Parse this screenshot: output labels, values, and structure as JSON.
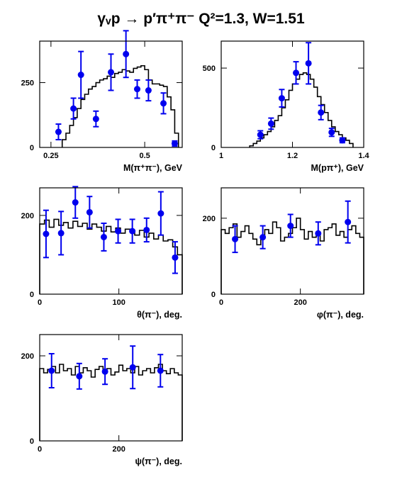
{
  "title": "γᵥp → p′π⁺π⁻   Q²=1.3, W=1.51",
  "colors": {
    "data_points": "#0000ee",
    "histogram": "#000000",
    "frame": "#000000"
  },
  "chart_data": [
    {
      "type": "histogram+scatter",
      "xlabel": "M(π⁺π⁻), GeV",
      "xlim": [
        0.22,
        0.6
      ],
      "ylim": [
        0,
        410
      ],
      "xticks": [
        0.25,
        0.5
      ],
      "xtick_labels": [
        "0.25",
        "0.5"
      ],
      "yticks": [
        0,
        250
      ],
      "ytick_labels": [
        "0",
        "250"
      ],
      "histogram": {
        "edges": [
          0.28,
          0.29,
          0.3,
          0.31,
          0.32,
          0.33,
          0.34,
          0.35,
          0.36,
          0.37,
          0.38,
          0.39,
          0.4,
          0.41,
          0.42,
          0.43,
          0.44,
          0.45,
          0.46,
          0.47,
          0.48,
          0.49,
          0.5,
          0.51,
          0.52,
          0.53,
          0.54,
          0.55,
          0.56,
          0.57,
          0.58,
          0.59
        ],
        "values": [
          30,
          55,
          85,
          115,
          150,
          185,
          205,
          225,
          235,
          250,
          260,
          265,
          275,
          270,
          285,
          290,
          300,
          295,
          290,
          305,
          310,
          315,
          300,
          260,
          245,
          245,
          240,
          235,
          195,
          145,
          55
        ]
      },
      "points": {
        "x": [
          0.27,
          0.31,
          0.33,
          0.37,
          0.41,
          0.45,
          0.48,
          0.51,
          0.55,
          0.58
        ],
        "y": [
          60,
          150,
          280,
          110,
          290,
          360,
          225,
          220,
          170,
          15
        ],
        "err": [
          30,
          40,
          90,
          30,
          70,
          90,
          35,
          40,
          40,
          10
        ]
      }
    },
    {
      "type": "histogram+scatter",
      "xlabel": "M(pπ⁺), GeV",
      "xlim": [
        1.0,
        1.4
      ],
      "ylim": [
        0,
        670
      ],
      "xticks": [
        1.0,
        1.2,
        1.4
      ],
      "xtick_labels": [
        "1",
        "1.2",
        "1.4"
      ],
      "yticks": [
        0,
        500
      ],
      "ytick_labels": [
        "0",
        "500"
      ],
      "histogram": {
        "edges": [
          1.08,
          1.09,
          1.1,
          1.11,
          1.12,
          1.13,
          1.14,
          1.15,
          1.16,
          1.17,
          1.18,
          1.19,
          1.2,
          1.21,
          1.22,
          1.23,
          1.24,
          1.25,
          1.26,
          1.27,
          1.28,
          1.29,
          1.3,
          1.31,
          1.32,
          1.33,
          1.34,
          1.35,
          1.36,
          1.37
        ],
        "values": [
          10,
          25,
          40,
          60,
          80,
          100,
          130,
          170,
          200,
          250,
          300,
          360,
          400,
          430,
          460,
          470,
          460,
          430,
          380,
          320,
          270,
          220,
          170,
          130,
          100,
          80,
          60,
          45,
          25
        ]
      },
      "points": {
        "x": [
          1.11,
          1.14,
          1.17,
          1.21,
          1.245,
          1.28,
          1.31,
          1.34
        ],
        "y": [
          80,
          150,
          310,
          470,
          530,
          220,
          95,
          45
        ],
        "err": [
          25,
          35,
          55,
          70,
          130,
          45,
          25,
          15
        ]
      }
    },
    {
      "type": "histogram+scatter",
      "xlabel": "θ(π⁻), deg.",
      "xlim": [
        0,
        180
      ],
      "ylim": [
        0,
        270
      ],
      "xticks": [
        0,
        100
      ],
      "xtick_labels": [
        "0",
        "100"
      ],
      "yticks": [
        0,
        200
      ],
      "ytick_labels": [
        "0",
        "200"
      ],
      "histogram": {
        "edges": [
          0,
          6,
          12,
          18,
          24,
          30,
          36,
          42,
          48,
          54,
          60,
          66,
          72,
          78,
          84,
          90,
          96,
          102,
          108,
          114,
          120,
          126,
          132,
          138,
          144,
          150,
          156,
          162,
          168,
          174,
          180
        ],
        "values": [
          178,
          188,
          170,
          190,
          175,
          182,
          168,
          185,
          172,
          180,
          165,
          178,
          170,
          160,
          172,
          158,
          168,
          155,
          165,
          160,
          150,
          162,
          145,
          155,
          140,
          150,
          135,
          138,
          120,
          100
        ]
      },
      "points": {
        "x": [
          8,
          27,
          45,
          63,
          81,
          99,
          117,
          135,
          153,
          171
        ],
        "y": [
          153,
          155,
          233,
          208,
          145,
          160,
          160,
          163,
          205,
          93
        ],
        "err": [
          60,
          55,
          40,
          40,
          35,
          30,
          30,
          30,
          55,
          40
        ]
      }
    },
    {
      "type": "histogram+scatter",
      "xlabel": "φ(π⁻), deg.",
      "xlim": [
        0,
        360
      ],
      "ylim": [
        0,
        280
      ],
      "xticks": [
        0,
        200
      ],
      "xtick_labels": [
        "0",
        "200"
      ],
      "yticks": [
        0,
        200
      ],
      "ytick_labels": [
        "0",
        "200"
      ],
      "histogram": {
        "edges": [
          0,
          10,
          20,
          30,
          40,
          50,
          60,
          70,
          80,
          90,
          100,
          110,
          120,
          130,
          140,
          150,
          160,
          170,
          180,
          190,
          200,
          210,
          220,
          230,
          240,
          250,
          260,
          270,
          280,
          290,
          300,
          310,
          320,
          330,
          340,
          350,
          360
        ],
        "values": [
          170,
          160,
          175,
          185,
          150,
          165,
          180,
          160,
          145,
          130,
          150,
          170,
          160,
          190,
          175,
          140,
          150,
          160,
          175,
          200,
          170,
          145,
          165,
          150,
          160,
          140,
          170,
          175,
          185,
          155,
          165,
          150,
          170,
          180,
          160,
          150
        ]
      },
      "points": {
        "x": [
          35,
          105,
          175,
          245,
          320
        ],
        "y": [
          145,
          150,
          180,
          160,
          190
        ],
        "err": [
          35,
          30,
          30,
          30,
          55
        ]
      }
    },
    {
      "type": "histogram+scatter",
      "xlabel": "ψ(π⁻), deg.",
      "xlim": [
        0,
        360
      ],
      "ylim": [
        0,
        250
      ],
      "xticks": [
        0,
        200
      ],
      "xtick_labels": [
        "0",
        "200"
      ],
      "yticks": [
        0,
        200
      ],
      "ytick_labels": [
        "0",
        "200"
      ],
      "histogram": {
        "edges": [
          0,
          10,
          20,
          30,
          40,
          50,
          60,
          70,
          80,
          90,
          100,
          110,
          120,
          130,
          140,
          150,
          160,
          170,
          180,
          190,
          200,
          210,
          220,
          230,
          240,
          250,
          260,
          270,
          280,
          290,
          300,
          310,
          320,
          330,
          340,
          350,
          360
        ],
        "values": [
          170,
          160,
          168,
          175,
          160,
          180,
          165,
          170,
          155,
          175,
          160,
          172,
          165,
          150,
          168,
          175,
          160,
          170,
          155,
          162,
          178,
          165,
          170,
          160,
          175,
          155,
          165,
          170,
          160,
          172,
          180,
          165,
          158,
          170,
          160,
          155
        ]
      },
      "points": {
        "x": [
          30,
          100,
          165,
          235,
          305
        ],
        "y": [
          165,
          152,
          163,
          173,
          165
        ],
        "err": [
          40,
          30,
          30,
          50,
          38
        ]
      }
    }
  ]
}
